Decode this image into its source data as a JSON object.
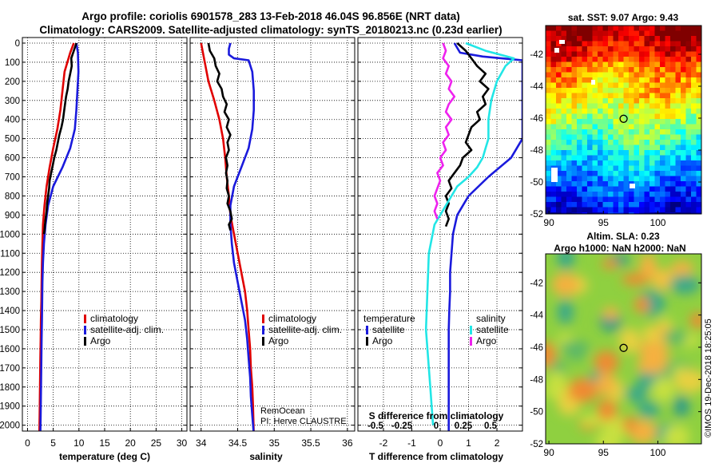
{
  "title_line1": "Argo profile: coriolis 6901578_283 13-Feb-2018 46.04S 96.856E (NRT data)",
  "title_line2": "Climatology: CARS2009. Satellite-adjusted climatology: synTS_20180213.nc (0.23d earlier)",
  "colors": {
    "red": "#e00000",
    "blue": "#1a1adc",
    "black": "#000000",
    "cyan": "#22e6e6",
    "magenta": "#ee22ee"
  },
  "chart_data": [
    {
      "type": "line",
      "id": "temperature",
      "xlabel": "temperature (deg C)",
      "ylabel": "",
      "xlim": [
        -1,
        31
      ],
      "ylim": [
        2060,
        0
      ],
      "xticks": [
        "0",
        "5",
        "10",
        "15",
        "20",
        "25",
        "30"
      ],
      "xtick_values": [
        0,
        5,
        10,
        15,
        20,
        25,
        30
      ],
      "yticks": [
        "0",
        "100",
        "200",
        "300",
        "400",
        "500",
        "600",
        "700",
        "800",
        "900",
        "1000",
        "1100",
        "1200",
        "1300",
        "1400",
        "1500",
        "1600",
        "1700",
        "1800",
        "1900",
        "2000"
      ],
      "ytick_values": [
        0,
        100,
        200,
        300,
        400,
        500,
        600,
        700,
        800,
        900,
        1000,
        1100,
        1200,
        1300,
        1400,
        1500,
        1600,
        1700,
        1800,
        1900,
        2000
      ],
      "legend": [
        "climatology",
        "satellite-adj. clim.",
        "Argo"
      ],
      "series": [
        {
          "name": "climatology",
          "color": "red",
          "x": [
            9.0,
            8.3,
            7.2,
            6.8,
            6.4,
            5.8,
            5.0,
            4.3,
            3.7,
            3.3,
            3.0,
            2.9,
            2.8,
            2.75,
            2.7,
            2.6,
            2.55,
            2.5,
            2.45,
            2.4,
            2.35,
            2.3
          ],
          "y": [
            0,
            50,
            150,
            250,
            350,
            450,
            550,
            650,
            750,
            850,
            950,
            1050,
            1150,
            1250,
            1350,
            1450,
            1550,
            1650,
            1750,
            1850,
            1950,
            2050
          ]
        },
        {
          "name": "satellite-adj. clim.",
          "color": "blue",
          "x": [
            9.5,
            9.8,
            9.9,
            9.7,
            9.5,
            9.2,
            8.3,
            6.8,
            5.0,
            4.0,
            3.5,
            3.2,
            3.0,
            2.9,
            2.85,
            2.8,
            2.75,
            2.7,
            2.65,
            2.6,
            2.55,
            2.5
          ],
          "y": [
            0,
            50,
            150,
            250,
            350,
            450,
            550,
            650,
            750,
            850,
            950,
            1050,
            1150,
            1250,
            1350,
            1450,
            1550,
            1650,
            1750,
            1850,
            1950,
            2050
          ]
        },
        {
          "name": "Argo",
          "color": "black",
          "x": [
            9.5,
            9.0,
            8.5,
            8.6,
            8.3,
            8.0,
            7.8,
            7.5,
            7.3,
            7.1,
            6.9,
            6.6,
            6.2,
            5.9,
            5.6,
            5.2,
            4.9,
            4.6,
            4.3,
            4.2,
            4.0,
            3.8,
            3.7,
            3.5,
            3.4,
            3.3,
            3.2
          ],
          "y": [
            0,
            40,
            80,
            120,
            160,
            200,
            240,
            280,
            320,
            360,
            400,
            440,
            480,
            520,
            560,
            600,
            640,
            680,
            720,
            760,
            800,
            840,
            880,
            920,
            950,
            980,
            1000
          ]
        }
      ]
    },
    {
      "type": "line",
      "id": "salinity",
      "xlabel": "salinity",
      "ylabel": "",
      "xlim": [
        33.85,
        36.1
      ],
      "ylim": [
        2060,
        0
      ],
      "xticks": [
        "34",
        "34.5",
        "35",
        "35.5",
        "36"
      ],
      "xtick_values": [
        34,
        34.5,
        35,
        35.5,
        36
      ],
      "legend": [
        "climatology",
        "satellite-adj. clim.",
        "Argo"
      ],
      "series": [
        {
          "name": "climatology",
          "color": "red",
          "x": [
            34.0,
            34.05,
            34.1,
            34.18,
            34.25,
            34.3,
            34.33,
            34.35,
            34.38,
            34.4,
            34.45,
            34.5,
            34.55,
            34.6,
            34.63,
            34.65,
            34.67,
            34.68,
            34.7,
            34.71,
            34.72
          ],
          "y": [
            0,
            100,
            200,
            300,
            400,
            500,
            600,
            700,
            800,
            900,
            1000,
            1100,
            1200,
            1300,
            1400,
            1500,
            1600,
            1700,
            1800,
            1900,
            2050
          ]
        },
        {
          "name": "satellite-adj. clim.",
          "color": "blue",
          "x": [
            34.4,
            34.38,
            34.38,
            34.45,
            34.65,
            34.7,
            34.72,
            34.72,
            34.7,
            34.65,
            34.55,
            34.45,
            34.4,
            34.4,
            34.42,
            34.45,
            34.5,
            34.55,
            34.6,
            34.63,
            34.65,
            34.67,
            34.68,
            34.7,
            34.72
          ],
          "y": [
            0,
            30,
            60,
            80,
            90,
            150,
            250,
            350,
            450,
            550,
            650,
            750,
            850,
            950,
            1050,
            1150,
            1250,
            1350,
            1450,
            1550,
            1650,
            1750,
            1850,
            1950,
            2050
          ]
        },
        {
          "name": "Argo",
          "color": "black",
          "x": [
            34.1,
            34.12,
            34.18,
            34.2,
            34.25,
            34.22,
            34.28,
            34.3,
            34.35,
            34.32,
            34.38,
            34.35,
            34.4,
            34.36,
            34.38,
            34.34,
            34.36,
            34.34,
            34.36,
            34.35,
            34.38,
            34.36,
            34.4,
            34.42,
            34.38,
            34.4
          ],
          "y": [
            0,
            40,
            80,
            120,
            160,
            200,
            240,
            280,
            320,
            360,
            400,
            440,
            480,
            520,
            560,
            600,
            640,
            680,
            720,
            760,
            800,
            840,
            880,
            920,
            950,
            980
          ]
        }
      ]
    },
    {
      "type": "line",
      "id": "differences",
      "xlabel": "T difference from climatology",
      "xlabel2": "S difference from climatology",
      "xlim": [
        -2.9,
        2.9
      ],
      "ylim": [
        2060,
        0
      ],
      "xticks": [
        "-2",
        "-1",
        "0",
        "1",
        "2"
      ],
      "xtick_values": [
        -2,
        -1,
        0,
        1,
        2
      ],
      "xticks_salinity": [
        "-0.5",
        "-0.25",
        "0",
        "0.25",
        "0.5"
      ],
      "xticks_salinity_values": [
        -0.5,
        -0.25,
        0,
        0.25,
        0.5
      ],
      "legend_left_title": "temperature",
      "legend_right_title": "salinity",
      "legend_left": [
        "satellite",
        "Argo"
      ],
      "legend_right": [
        "satellite",
        "Argo"
      ],
      "series": [
        {
          "name": "temperature satellite",
          "color": "blue",
          "x": [
            0.5,
            0.7,
            1.5,
            2.9,
            2.9,
            2.9,
            2.9,
            2.5,
            1.7,
            1.0,
            0.6,
            0.45,
            0.4,
            0.35,
            0.35,
            0.32,
            0.3,
            0.3,
            0.3,
            0.3,
            0.3,
            0.3
          ],
          "y": [
            0,
            50,
            70,
            90,
            150,
            300,
            500,
            600,
            700,
            800,
            900,
            1000,
            1100,
            1200,
            1300,
            1400,
            1500,
            1600,
            1700,
            1800,
            1900,
            2050
          ]
        },
        {
          "name": "temperature Argo",
          "color": "black",
          "x": [
            0.6,
            0.9,
            1.1,
            1.3,
            1.6,
            1.4,
            1.7,
            1.5,
            1.6,
            1.3,
            1.4,
            1.1,
            1.0,
            0.9,
            1.1,
            0.8,
            0.7,
            0.5,
            0.3,
            0.4,
            0.2,
            0.3,
            0.2,
            0.3,
            0.2
          ],
          "y": [
            0,
            40,
            80,
            120,
            160,
            200,
            240,
            280,
            320,
            360,
            400,
            440,
            480,
            520,
            560,
            600,
            640,
            680,
            720,
            760,
            800,
            840,
            880,
            920,
            960
          ]
        },
        {
          "name": "salinity satellite",
          "color": "cyan",
          "x": [
            0.9,
            1.6,
            2.6,
            2.3,
            2.0,
            1.8,
            1.7,
            1.7,
            1.6,
            1.5,
            1.3,
            1.0,
            0.6,
            0.2,
            -0.2,
            -0.4,
            -0.45,
            -0.5,
            -0.45,
            -0.4,
            -0.35,
            -0.3,
            -0.25
          ],
          "y": [
            0,
            40,
            80,
            120,
            200,
            300,
            400,
            500,
            550,
            600,
            650,
            700,
            750,
            850,
            950,
            1100,
            1300,
            1500,
            1600,
            1700,
            1800,
            1900,
            2000
          ]
        },
        {
          "name": "salinity Argo",
          "color": "magenta",
          "x": [
            0.1,
            0.2,
            0.1,
            0.3,
            0.2,
            0.4,
            0.3,
            0.5,
            0.3,
            0.2,
            0.4,
            0.2,
            0.3,
            0.1,
            0.2,
            0.0,
            0.1,
            -0.1,
            0.0,
            -0.1,
            -0.2,
            -0.1,
            -0.2,
            -0.1
          ],
          "y": [
            0,
            40,
            80,
            120,
            160,
            200,
            240,
            280,
            320,
            360,
            400,
            440,
            480,
            520,
            560,
            600,
            640,
            680,
            720,
            760,
            800,
            840,
            880,
            920
          ]
        }
      ]
    },
    {
      "type": "heatmap",
      "id": "sst_map",
      "title": "sat. SST: 9.07 Argo: 9.43",
      "xticks": [
        "90",
        "95",
        "100"
      ],
      "xtick_values": [
        90,
        95,
        100
      ],
      "yticks": [
        "-42",
        "-44",
        "-46",
        "-48",
        "-50",
        "-52"
      ],
      "ytick_values": [
        -42,
        -44,
        -46,
        -48,
        -50,
        -52
      ],
      "xlim": [
        89.7,
        104
      ],
      "ylim": [
        -52,
        -40.2
      ],
      "float_lon": 96.856,
      "float_lat": -46.04
    },
    {
      "type": "heatmap",
      "id": "sla_map",
      "title_line1": "Altim. SLA: 0.23",
      "title_line2": "Argo h1000: NaN h2000: NaN",
      "xticks": [
        "90",
        "95",
        "100"
      ],
      "xtick_values": [
        90,
        95,
        100
      ],
      "yticks": [
        "-42",
        "-44",
        "-46",
        "-48",
        "-50",
        "-52"
      ],
      "ytick_values": [
        -42,
        -44,
        -46,
        -48,
        -50,
        -52
      ],
      "xlim": [
        89.7,
        104
      ],
      "ylim": [
        -52,
        -40.2
      ],
      "float_lon": 96.856,
      "float_lat": -46.04
    }
  ],
  "credit_line1": "RemOcean",
  "credit_line2": "PI: Herve CLAUSTRE",
  "watermark": "©IMOS 19-Dec-2018 18:25:05"
}
